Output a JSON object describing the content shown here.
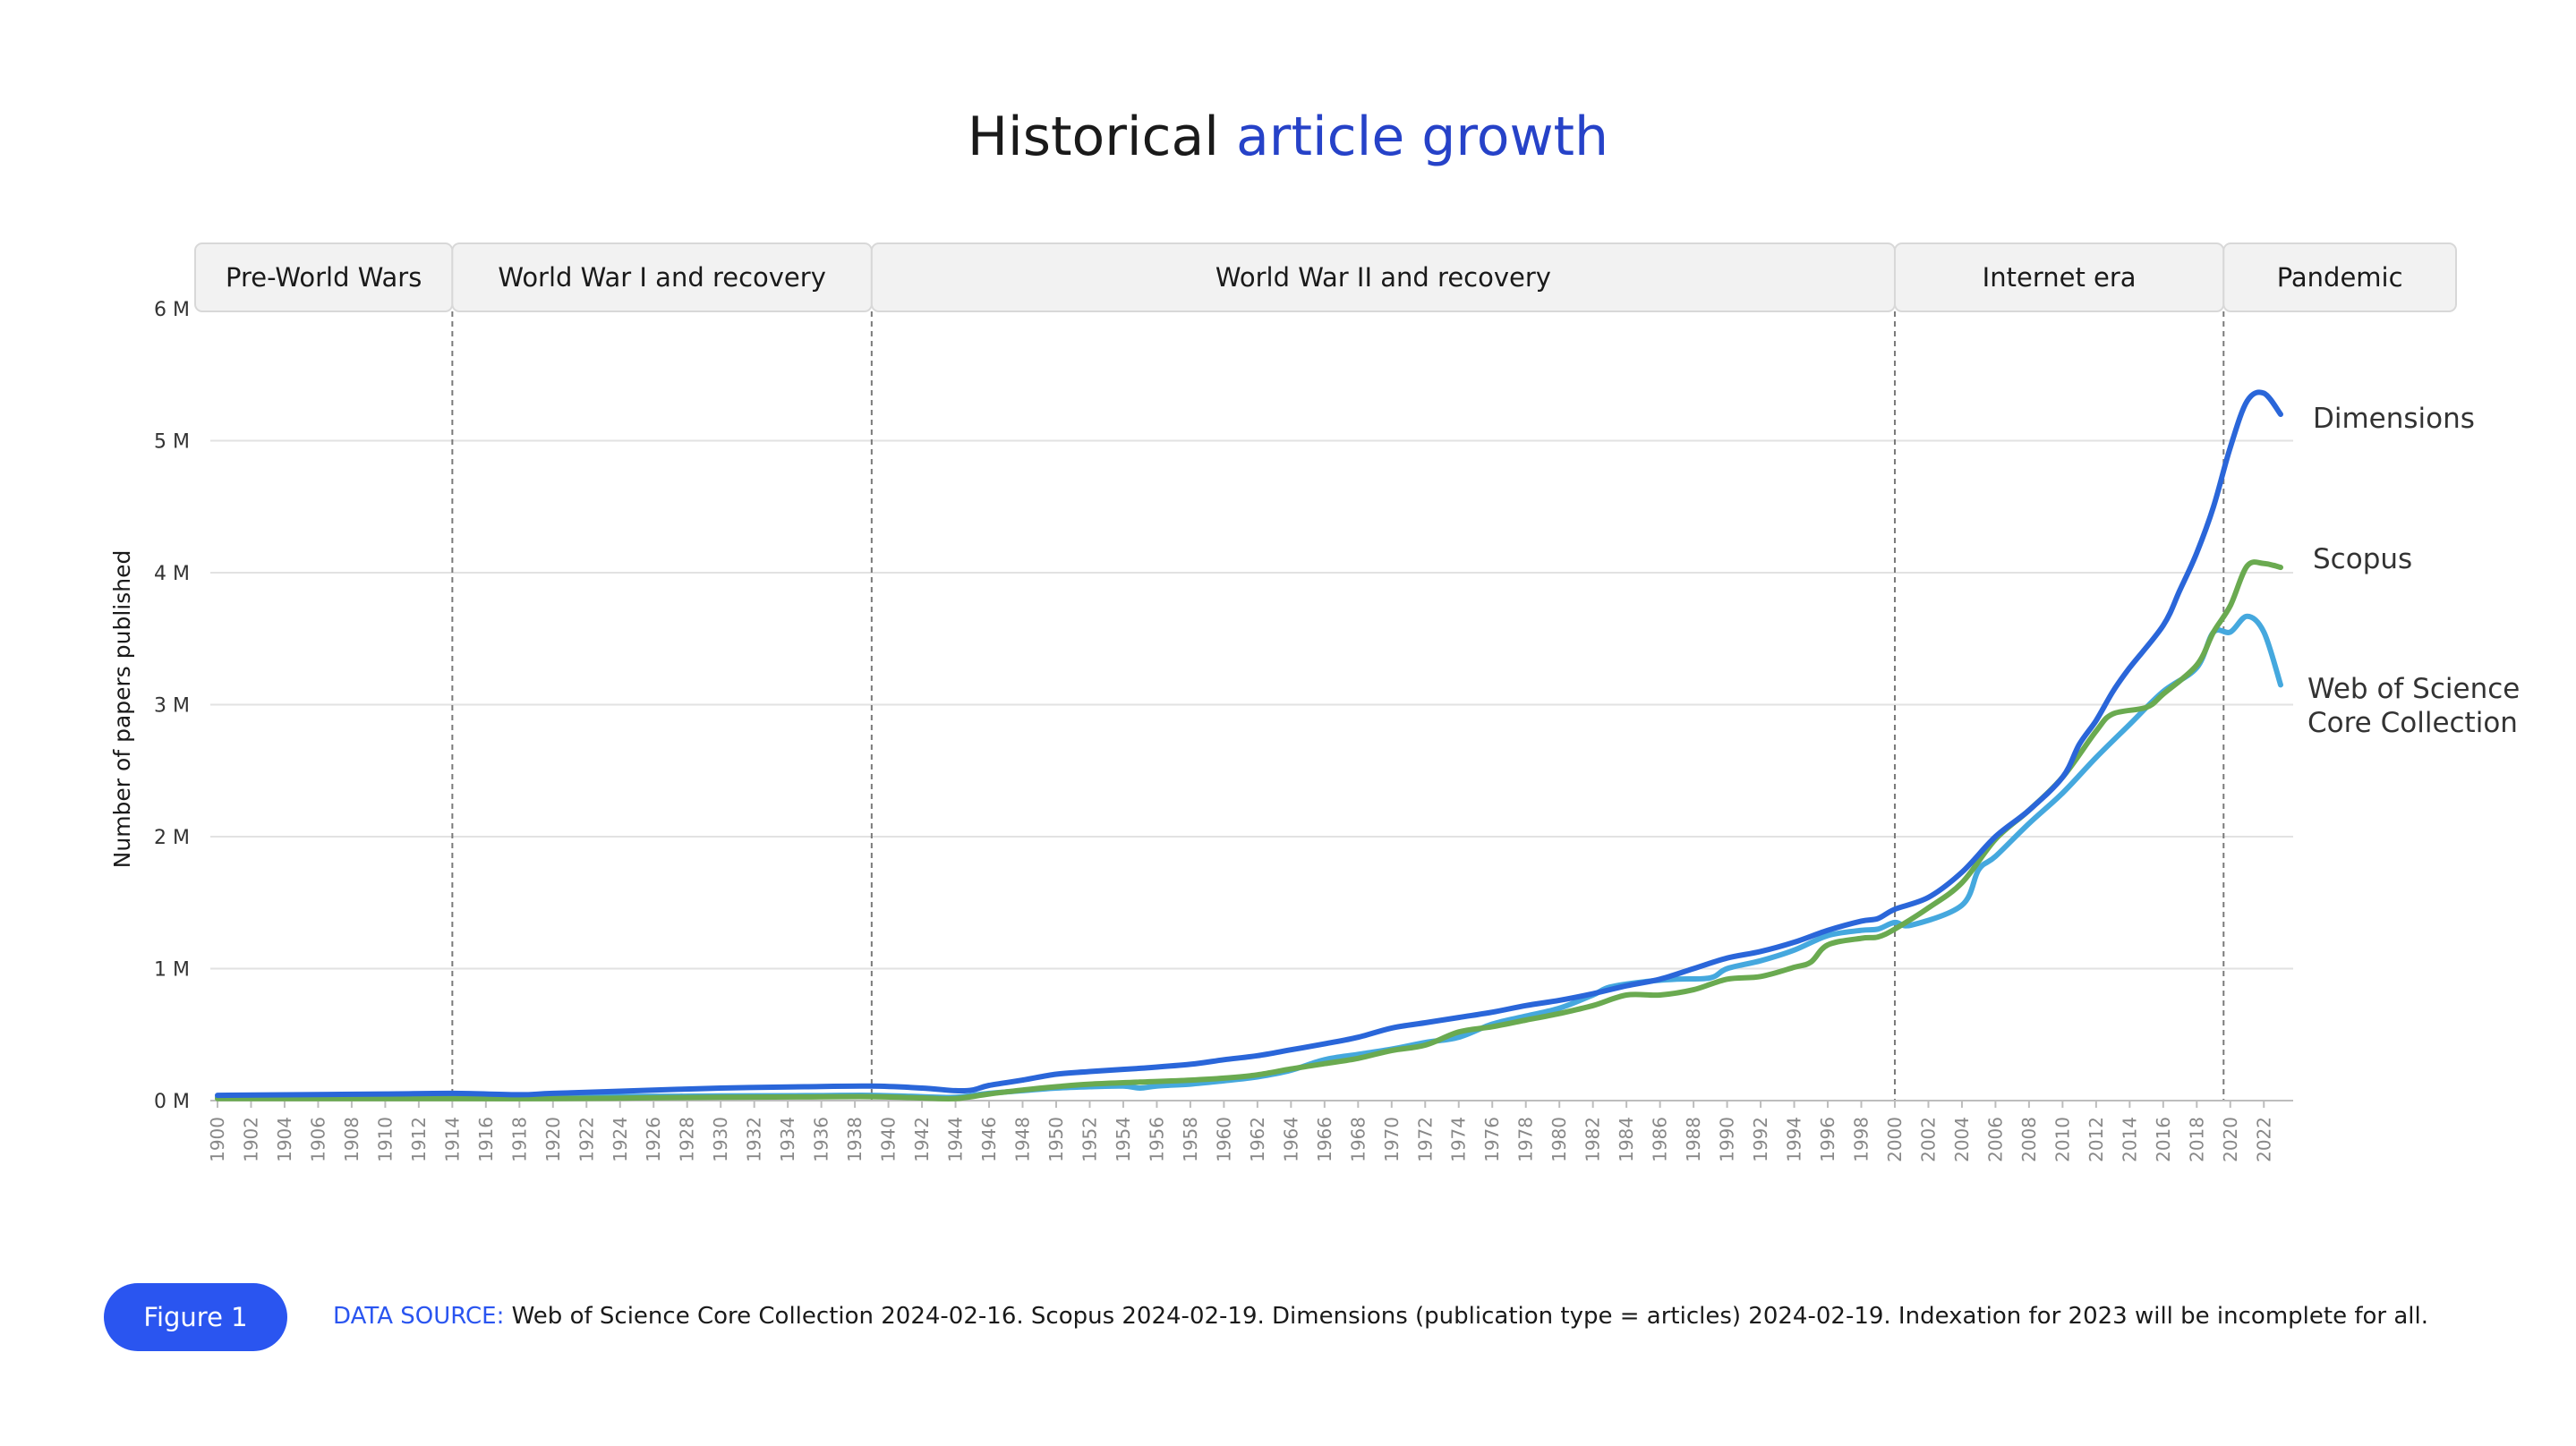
{
  "title": {
    "main": "Historical ",
    "accent": "article growth"
  },
  "colors": {
    "title_accent": "#2642c8",
    "dimensions": "#2a66d9",
    "scopus": "#6aaa50",
    "wos": "#45a8de",
    "figure_badge": "#2a55f0",
    "era_fill": "#f2f2f2",
    "grid": "#e2e2e2"
  },
  "footer": {
    "figure_label": "Figure 1",
    "source_key": "DATA SOURCE:",
    "source_text": " Web of Science Core Collection 2024-02-16. Scopus 2024-02-19. Dimensions (publication type = articles) 2024-02-19. Indexation for 2023 will be incomplete for all."
  },
  "chart_data": {
    "type": "line",
    "ylabel": "Number of papers published",
    "ylim": [
      0,
      6000000
    ],
    "yticks": [
      {
        "value": 0,
        "label": "0 M"
      },
      {
        "value": 1000000,
        "label": "1 M"
      },
      {
        "value": 2000000,
        "label": "2 M"
      },
      {
        "value": 3000000,
        "label": "3 M"
      },
      {
        "value": 4000000,
        "label": "4 M"
      },
      {
        "value": 5000000,
        "label": "5 M"
      },
      {
        "value": 6000000,
        "label": "6 M"
      }
    ],
    "xlim": [
      1900,
      2023
    ],
    "xticks": [
      1900,
      1902,
      1904,
      1906,
      1908,
      1910,
      1912,
      1914,
      1916,
      1918,
      1920,
      1922,
      1924,
      1926,
      1928,
      1930,
      1932,
      1934,
      1936,
      1938,
      1940,
      1942,
      1944,
      1946,
      1948,
      1950,
      1952,
      1954,
      1956,
      1958,
      1960,
      1962,
      1964,
      1966,
      1968,
      1970,
      1972,
      1974,
      1976,
      1978,
      1980,
      1982,
      1984,
      1986,
      1988,
      1990,
      1992,
      1994,
      1996,
      1998,
      2000,
      2002,
      2004,
      2006,
      2008,
      2010,
      2012,
      2014,
      2016,
      2018,
      2020,
      2022
    ],
    "grid": true,
    "legend": "direct labels at line ends (right)",
    "eras": [
      {
        "label": "Pre-World Wars",
        "start": 1900,
        "end": 1914
      },
      {
        "label": "World War I and recovery",
        "start": 1914,
        "end": 1939
      },
      {
        "label": "World War II and recovery",
        "start": 1939,
        "end": 2000
      },
      {
        "label": "Internet era",
        "start": 2000,
        "end": 2019.6
      },
      {
        "label": "Pandemic",
        "start": 2019.6,
        "end": 2023
      }
    ],
    "series": [
      {
        "name": "Dimensions",
        "color": "#2a66d9",
        "points": [
          [
            1900,
            40000
          ],
          [
            1905,
            45000
          ],
          [
            1910,
            50000
          ],
          [
            1914,
            55000
          ],
          [
            1918,
            45000
          ],
          [
            1920,
            55000
          ],
          [
            1925,
            75000
          ],
          [
            1930,
            95000
          ],
          [
            1935,
            105000
          ],
          [
            1939,
            110000
          ],
          [
            1942,
            95000
          ],
          [
            1944,
            75000
          ],
          [
            1945,
            80000
          ],
          [
            1946,
            115000
          ],
          [
            1948,
            155000
          ],
          [
            1950,
            200000
          ],
          [
            1952,
            220000
          ],
          [
            1955,
            245000
          ],
          [
            1958,
            275000
          ],
          [
            1960,
            310000
          ],
          [
            1962,
            340000
          ],
          [
            1964,
            385000
          ],
          [
            1966,
            430000
          ],
          [
            1968,
            480000
          ],
          [
            1970,
            550000
          ],
          [
            1972,
            590000
          ],
          [
            1974,
            630000
          ],
          [
            1976,
            670000
          ],
          [
            1978,
            720000
          ],
          [
            1980,
            760000
          ],
          [
            1982,
            810000
          ],
          [
            1984,
            870000
          ],
          [
            1986,
            920000
          ],
          [
            1988,
            1000000
          ],
          [
            1990,
            1080000
          ],
          [
            1992,
            1130000
          ],
          [
            1994,
            1200000
          ],
          [
            1996,
            1290000
          ],
          [
            1998,
            1360000
          ],
          [
            1999,
            1380000
          ],
          [
            2000,
            1450000
          ],
          [
            2002,
            1540000
          ],
          [
            2004,
            1730000
          ],
          [
            2006,
            2000000
          ],
          [
            2008,
            2200000
          ],
          [
            2010,
            2450000
          ],
          [
            2011,
            2700000
          ],
          [
            2012,
            2880000
          ],
          [
            2013,
            3100000
          ],
          [
            2014,
            3280000
          ],
          [
            2016,
            3600000
          ],
          [
            2017,
            3870000
          ],
          [
            2018,
            4150000
          ],
          [
            2019,
            4500000
          ],
          [
            2020,
            4950000
          ],
          [
            2021,
            5300000
          ],
          [
            2022,
            5360000
          ],
          [
            2023,
            5200000
          ]
        ]
      },
      {
        "name": "Scopus",
        "color": "#6aaa50",
        "points": [
          [
            1900,
            15000
          ],
          [
            1910,
            15000
          ],
          [
            1914,
            15000
          ],
          [
            1920,
            15000
          ],
          [
            1925,
            20000
          ],
          [
            1930,
            25000
          ],
          [
            1935,
            28000
          ],
          [
            1939,
            30000
          ],
          [
            1942,
            20000
          ],
          [
            1944,
            15000
          ],
          [
            1946,
            50000
          ],
          [
            1948,
            80000
          ],
          [
            1950,
            105000
          ],
          [
            1952,
            125000
          ],
          [
            1955,
            140000
          ],
          [
            1958,
            155000
          ],
          [
            1960,
            170000
          ],
          [
            1962,
            195000
          ],
          [
            1964,
            240000
          ],
          [
            1966,
            280000
          ],
          [
            1968,
            320000
          ],
          [
            1970,
            380000
          ],
          [
            1972,
            420000
          ],
          [
            1974,
            520000
          ],
          [
            1976,
            560000
          ],
          [
            1978,
            610000
          ],
          [
            1980,
            660000
          ],
          [
            1982,
            720000
          ],
          [
            1984,
            800000
          ],
          [
            1986,
            800000
          ],
          [
            1988,
            840000
          ],
          [
            1990,
            920000
          ],
          [
            1992,
            940000
          ],
          [
            1994,
            1010000
          ],
          [
            1995,
            1050000
          ],
          [
            1996,
            1180000
          ],
          [
            1998,
            1230000
          ],
          [
            1999,
            1240000
          ],
          [
            2000,
            1300000
          ],
          [
            2002,
            1460000
          ],
          [
            2004,
            1650000
          ],
          [
            2006,
            1980000
          ],
          [
            2008,
            2200000
          ],
          [
            2010,
            2450000
          ],
          [
            2012,
            2800000
          ],
          [
            2013,
            2930000
          ],
          [
            2015,
            2980000
          ],
          [
            2016,
            3080000
          ],
          [
            2018,
            3300000
          ],
          [
            2019,
            3550000
          ],
          [
            2020,
            3750000
          ],
          [
            2021,
            4050000
          ],
          [
            2022,
            4070000
          ],
          [
            2023,
            4040000
          ]
        ]
      },
      {
        "name": "Web of Science\nCore Collection",
        "color": "#45a8de",
        "points": [
          [
            1900,
            25000
          ],
          [
            1910,
            28000
          ],
          [
            1914,
            30000
          ],
          [
            1920,
            30000
          ],
          [
            1925,
            32000
          ],
          [
            1930,
            35000
          ],
          [
            1935,
            38000
          ],
          [
            1939,
            40000
          ],
          [
            1942,
            30000
          ],
          [
            1944,
            25000
          ],
          [
            1946,
            55000
          ],
          [
            1948,
            75000
          ],
          [
            1950,
            95000
          ],
          [
            1952,
            105000
          ],
          [
            1954,
            110000
          ],
          [
            1955,
            95000
          ],
          [
            1956,
            110000
          ],
          [
            1958,
            125000
          ],
          [
            1960,
            150000
          ],
          [
            1962,
            180000
          ],
          [
            1964,
            230000
          ],
          [
            1966,
            310000
          ],
          [
            1968,
            350000
          ],
          [
            1970,
            390000
          ],
          [
            1972,
            440000
          ],
          [
            1974,
            480000
          ],
          [
            1976,
            580000
          ],
          [
            1978,
            640000
          ],
          [
            1980,
            700000
          ],
          [
            1982,
            800000
          ],
          [
            1983,
            860000
          ],
          [
            1985,
            900000
          ],
          [
            1987,
            920000
          ],
          [
            1989,
            930000
          ],
          [
            1990,
            1000000
          ],
          [
            1992,
            1060000
          ],
          [
            1994,
            1140000
          ],
          [
            1996,
            1250000
          ],
          [
            1998,
            1290000
          ],
          [
            1999,
            1300000
          ],
          [
            2000,
            1350000
          ],
          [
            2001,
            1330000
          ],
          [
            2004,
            1480000
          ],
          [
            2005,
            1750000
          ],
          [
            2006,
            1850000
          ],
          [
            2008,
            2100000
          ],
          [
            2010,
            2330000
          ],
          [
            2012,
            2600000
          ],
          [
            2014,
            2850000
          ],
          [
            2016,
            3100000
          ],
          [
            2018,
            3280000
          ],
          [
            2019,
            3550000
          ],
          [
            2020,
            3550000
          ],
          [
            2021,
            3670000
          ],
          [
            2022,
            3550000
          ],
          [
            2023,
            3150000
          ]
        ]
      }
    ]
  }
}
